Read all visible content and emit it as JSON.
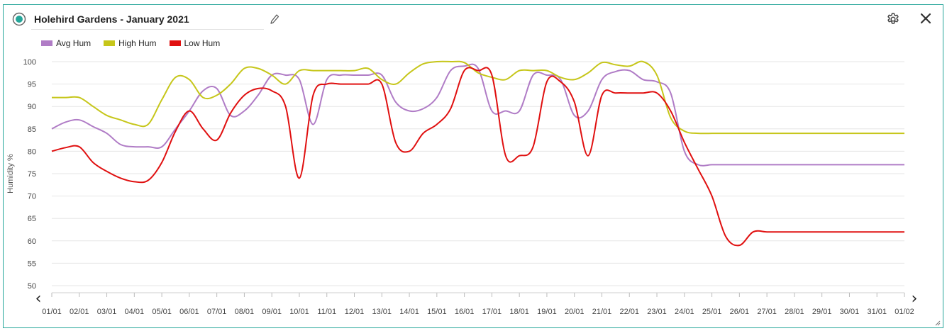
{
  "header": {
    "title": "Holehird Gardens - January 2021",
    "radio_icon": "radio-selected-icon",
    "edit_icon": "pencil-icon",
    "settings_icon": "gear-icon",
    "close_icon": "close-icon"
  },
  "nav": {
    "prev": "‹",
    "next": "›"
  },
  "chart_data": {
    "type": "line",
    "ylabel": "Humidity %",
    "ylim": [
      50,
      100
    ],
    "yticks": [
      50,
      55,
      60,
      65,
      70,
      75,
      80,
      85,
      90,
      95,
      100
    ],
    "grid": true,
    "legend_position": "top-left",
    "x_tick_labels": [
      "01/01",
      "02/01",
      "03/01",
      "04/01",
      "05/01",
      "06/01",
      "07/01",
      "08/01",
      "09/01",
      "10/01",
      "11/01",
      "12/01",
      "13/01",
      "14/01",
      "15/01",
      "16/01",
      "17/01",
      "18/01",
      "19/01",
      "20/01",
      "21/01",
      "22/01",
      "23/01",
      "24/01",
      "25/01",
      "26/01",
      "27/01",
      "28/01",
      "29/01",
      "30/01",
      "31/01",
      "01/02"
    ],
    "x_days": [
      0,
      0.5,
      1,
      1.5,
      2,
      2.5,
      3,
      3.5,
      4,
      4.5,
      5,
      5.5,
      6,
      6.5,
      7,
      7.5,
      8,
      8.5,
      9,
      9.5,
      10,
      10.5,
      11,
      11.5,
      12,
      12.5,
      13,
      13.5,
      14,
      14.5,
      15,
      15.5,
      16,
      16.5,
      17,
      17.5,
      18,
      18.5,
      19,
      19.5,
      20,
      20.5,
      21,
      21.5,
      22,
      22.5,
      23,
      23.5,
      24,
      24.5,
      25,
      25.5,
      26,
      26.5,
      27,
      27.5,
      28,
      28.5,
      29,
      29.5,
      30,
      30.5,
      31
    ],
    "series": [
      {
        "name": "Avg Hum",
        "color": "#b07cc6",
        "values": [
          85,
          86.5,
          87,
          85.5,
          84,
          81.5,
          81,
          81,
          81,
          85,
          89,
          93.5,
          94,
          88,
          89,
          92.5,
          97,
          97,
          96,
          86,
          96,
          97,
          97,
          97,
          97,
          91,
          89,
          89.5,
          92,
          98,
          99,
          98.5,
          89,
          89,
          89,
          97,
          97,
          96,
          88,
          89,
          96,
          97.8,
          98,
          96,
          95.5,
          93,
          80,
          77,
          77,
          77,
          77,
          77,
          77,
          77,
          77,
          77,
          77,
          77,
          77,
          77,
          77,
          77,
          77
        ]
      },
      {
        "name": "High Hum",
        "color": "#c6c61a",
        "values": [
          92,
          92,
          92,
          90,
          88,
          87,
          86,
          86,
          91.5,
          96.5,
          96,
          92,
          92.5,
          95,
          98.5,
          98.5,
          97,
          95,
          98,
          98,
          98,
          98,
          98,
          98.5,
          96,
          95,
          97.5,
          99.5,
          100,
          100,
          99.8,
          97.5,
          96.5,
          96,
          98,
          98,
          98,
          96.5,
          96,
          97.5,
          99.8,
          99.3,
          99,
          100,
          97,
          87.5,
          84.5,
          84,
          84,
          84,
          84,
          84,
          84,
          84,
          84,
          84,
          84,
          84,
          84,
          84,
          84,
          84,
          84
        ]
      },
      {
        "name": "Low Hum",
        "color": "#e01010",
        "values": [
          80,
          80.8,
          81,
          77.5,
          75.5,
          74,
          73.2,
          73.5,
          77.5,
          84.5,
          89,
          85,
          82.5,
          88.5,
          92.5,
          94,
          93.5,
          90,
          74,
          92.5,
          95,
          95,
          95,
          95,
          95,
          82,
          80,
          84,
          86,
          89.5,
          98,
          98,
          97,
          79,
          79,
          81,
          95.5,
          95.5,
          91,
          79,
          92.5,
          93,
          93,
          93,
          93,
          89,
          82,
          76,
          70,
          61,
          59,
          62,
          62,
          62,
          62,
          62,
          62,
          62,
          62,
          62,
          62,
          62,
          62
        ]
      }
    ]
  }
}
